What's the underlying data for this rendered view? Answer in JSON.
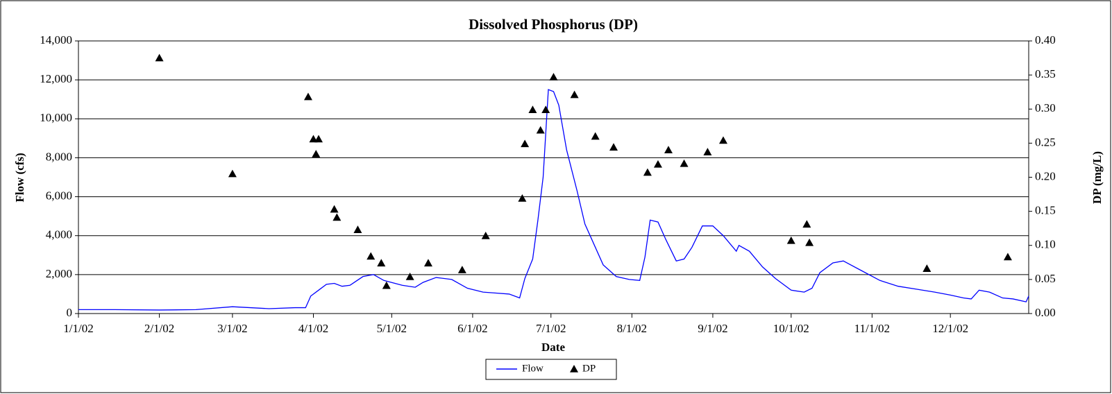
{
  "chart_data": {
    "type": "line",
    "title": "Dissolved Phosphorus (DP)",
    "x_label": "Date",
    "y_label": "Flow (cfs)",
    "y2_label": "DP (mg/L)",
    "xlim": [
      "2002-01-01",
      "2002-12-31"
    ],
    "xticks": [
      {
        "value": "2002-01-01",
        "label": "1/1/02"
      },
      {
        "value": "2002-02-01",
        "label": "2/1/02"
      },
      {
        "value": "2002-03-01",
        "label": "3/1/02"
      },
      {
        "value": "2002-04-01",
        "label": "4/1/02"
      },
      {
        "value": "2002-05-01",
        "label": "5/1/02"
      },
      {
        "value": "2002-06-01",
        "label": "6/1/02"
      },
      {
        "value": "2002-07-01",
        "label": "7/1/02"
      },
      {
        "value": "2002-08-01",
        "label": "8/1/02"
      },
      {
        "value": "2002-09-01",
        "label": "9/1/02"
      },
      {
        "value": "2002-10-01",
        "label": "10/1/02"
      },
      {
        "value": "2002-11-01",
        "label": "11/1/02"
      },
      {
        "value": "2002-12-01",
        "label": "12/1/02"
      }
    ],
    "ylim": [
      0,
      14000
    ],
    "yticks": [
      0,
      {
        "value": 2000,
        "label": "2,000"
      },
      {
        "value": 4000,
        "label": "4,000"
      },
      {
        "value": 6000,
        "label": "6,000"
      },
      {
        "value": 8000,
        "label": "8,000"
      },
      {
        "value": 10000,
        "label": "10,000"
      },
      {
        "value": 12000,
        "label": "12,000"
      },
      {
        "value": 14000,
        "label": "14,000"
      }
    ],
    "y2lim": [
      0,
      0.4
    ],
    "y2ticks": [
      {
        "value": 0,
        "label": "0.00"
      },
      {
        "value": 0.05,
        "label": "0.05"
      },
      {
        "value": 0.1,
        "label": "0.10"
      },
      {
        "value": 0.15,
        "label": "0.15"
      },
      {
        "value": 0.2,
        "label": "0.20"
      },
      {
        "value": 0.25,
        "label": "0.25"
      },
      {
        "value": 0.3,
        "label": "0.30"
      },
      {
        "value": 0.35,
        "label": "0.35"
      },
      {
        "value": 0.4,
        "label": "0.40"
      }
    ],
    "grid": true,
    "legend": "bottom",
    "series": [
      {
        "name": "Flow",
        "type": "line",
        "color": "#0000ff",
        "x": [
          "2002-01-01",
          "2002-01-15",
          "2002-02-01",
          "2002-02-15",
          "2002-03-01",
          "2002-03-15",
          "2002-03-25",
          "2002-03-29",
          "2002-03-31",
          "2002-04-03",
          "2002-04-06",
          "2002-04-09",
          "2002-04-12",
          "2002-04-15",
          "2002-04-20",
          "2002-04-24",
          "2002-04-28",
          "2002-05-05",
          "2002-05-10",
          "2002-05-13",
          "2002-05-18",
          "2002-05-24",
          "2002-05-30",
          "2002-06-05",
          "2002-06-10",
          "2002-06-15",
          "2002-06-19",
          "2002-06-21",
          "2002-06-24",
          "2002-06-26",
          "2002-06-28",
          "2002-06-30",
          "2002-07-02",
          "2002-07-04",
          "2002-07-07",
          "2002-07-11",
          "2002-07-14",
          "2002-07-18",
          "2002-07-21",
          "2002-07-26",
          "2002-07-31",
          "2002-08-04",
          "2002-08-06",
          "2002-08-08",
          "2002-08-11",
          "2002-08-14",
          "2002-08-18",
          "2002-08-21",
          "2002-08-24",
          "2002-08-28",
          "2002-09-01",
          "2002-09-05",
          "2002-09-10",
          "2002-09-11",
          "2002-09-15",
          "2002-09-20",
          "2002-09-25",
          "2002-10-01",
          "2002-10-06",
          "2002-10-09",
          "2002-10-12",
          "2002-10-17",
          "2002-10-21",
          "2002-10-28",
          "2002-11-04",
          "2002-11-11",
          "2002-11-18",
          "2002-11-25",
          "2002-12-01",
          "2002-12-06",
          "2002-12-09",
          "2002-12-12",
          "2002-12-16",
          "2002-12-21",
          "2002-12-25",
          "2002-12-30",
          "2002-12-31"
        ],
        "values": [
          200,
          200,
          180,
          200,
          350,
          250,
          300,
          300,
          900,
          1200,
          1500,
          1550,
          1400,
          1450,
          1900,
          2000,
          1700,
          1450,
          1350,
          1600,
          1850,
          1750,
          1300,
          1100,
          1050,
          1000,
          800,
          1800,
          2800,
          4800,
          7000,
          11500,
          11400,
          10700,
          8400,
          6300,
          4600,
          3400,
          2500,
          1900,
          1750,
          1700,
          2900,
          4800,
          4700,
          3800,
          2700,
          2800,
          3400,
          4500,
          4500,
          4000,
          3200,
          3500,
          3200,
          2400,
          1800,
          1200,
          1100,
          1300,
          2100,
          2600,
          2700,
          2200,
          1700,
          1400,
          1250,
          1100,
          950,
          800,
          750,
          1200,
          1100,
          800,
          750,
          600,
          900
        ]
      },
      {
        "name": "DP",
        "type": "scatter",
        "axis": "y2",
        "color": "#000000",
        "x": [
          "2002-02-01",
          "2002-03-01",
          "2002-03-30",
          "2002-04-01",
          "2002-04-02",
          "2002-04-03",
          "2002-04-09",
          "2002-04-10",
          "2002-04-18",
          "2002-04-23",
          "2002-04-27",
          "2002-04-29",
          "2002-05-08",
          "2002-05-15",
          "2002-05-28",
          "2002-06-06",
          "2002-06-20",
          "2002-06-21",
          "2002-06-24",
          "2002-06-27",
          "2002-06-29",
          "2002-07-02",
          "2002-07-10",
          "2002-07-18",
          "2002-07-25",
          "2002-08-07",
          "2002-08-11",
          "2002-08-15",
          "2002-08-21",
          "2002-08-30",
          "2002-09-05",
          "2002-10-01",
          "2002-10-07",
          "2002-10-08",
          "2002-11-22",
          "2002-12-23"
        ],
        "values": [
          0.375,
          0.205,
          0.318,
          0.256,
          0.234,
          0.256,
          0.153,
          0.141,
          0.123,
          0.084,
          0.074,
          0.041,
          0.054,
          0.074,
          0.064,
          0.114,
          0.169,
          0.249,
          0.299,
          0.269,
          0.299,
          0.347,
          0.321,
          0.26,
          0.244,
          0.207,
          0.219,
          0.24,
          0.22,
          0.237,
          0.254,
          0.107,
          0.131,
          0.104,
          0.066,
          0.083
        ]
      }
    ]
  }
}
